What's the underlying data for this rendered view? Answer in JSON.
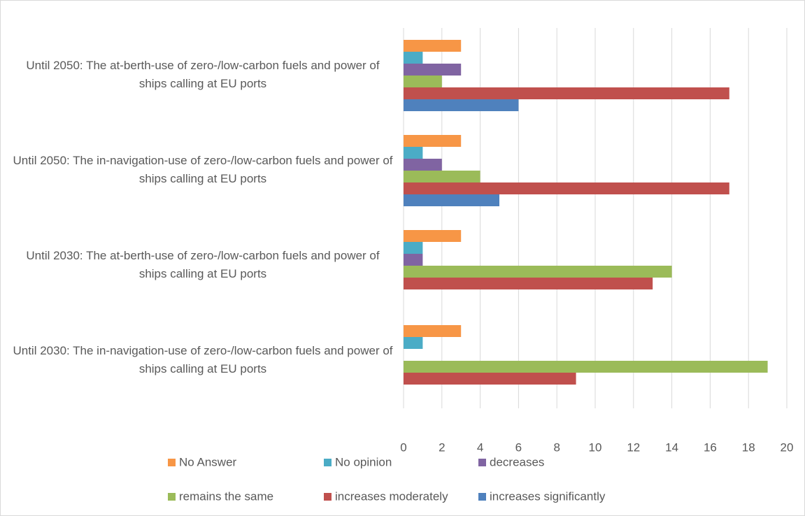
{
  "chart_data": {
    "type": "bar",
    "orientation": "horizontal",
    "categories": [
      "Until 2050: The at-berth-use of zero-/low-carbon fuels and power of ships calling at EU ports",
      "Until 2050: The in-navigation-use of zero-/low-carbon fuels and power of ships calling at EU ports",
      "Until 2030: The at-berth-use of zero-/low-carbon fuels and power of ships calling at EU ports",
      "Until 2030: The in-navigation-use of zero-/low-carbon fuels and power of ships calling at EU ports"
    ],
    "series": [
      {
        "name": "No Answer",
        "color": "#f79646",
        "values": [
          3,
          3,
          3,
          3
        ]
      },
      {
        "name": "No opinion",
        "color": "#4bacc6",
        "values": [
          1,
          1,
          1,
          1
        ]
      },
      {
        "name": "decreases",
        "color": "#8064a2",
        "values": [
          3,
          2,
          1,
          0
        ]
      },
      {
        "name": "remains the same",
        "color": "#9bbb59",
        "values": [
          2,
          4,
          14,
          19
        ]
      },
      {
        "name": "increases moderately",
        "color": "#c0504d",
        "values": [
          17,
          17,
          13,
          9
        ]
      },
      {
        "name": "increases significantly",
        "color": "#4f81bd",
        "values": [
          6,
          5,
          0,
          0
        ]
      }
    ],
    "xlim": [
      0,
      20
    ],
    "xticks": [
      0,
      2,
      4,
      6,
      8,
      10,
      12,
      14,
      16,
      18,
      20
    ],
    "grid": true,
    "legend": "bottom"
  }
}
